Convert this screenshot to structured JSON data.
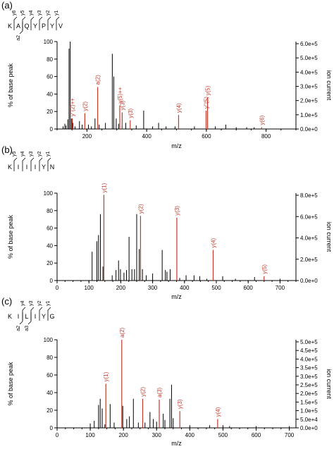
{
  "colors": {
    "black_peak": "#000000",
    "red_peak": "#c0392b",
    "axis": "#000000"
  },
  "chart_data": [
    {
      "type": "bar",
      "panel_label": "(a)",
      "sequence": [
        "K",
        "A",
        "Q",
        "Y",
        "P",
        "Y",
        "V"
      ],
      "y_fragments": [
        "y6",
        "y5",
        "y4",
        "y3",
        "y2",
        "y1"
      ],
      "a_fragments": [
        "a2"
      ],
      "xlabel": "m/z",
      "ylabel": "% of base peak",
      "y2label": "ion current",
      "xlim": [
        100,
        900
      ],
      "xticks": [
        200,
        400,
        600,
        800
      ],
      "ylim": [
        0,
        100
      ],
      "yticks": [
        0,
        20,
        40,
        60,
        80,
        100
      ],
      "y2ticks": [
        "0.0e+0",
        "1.0e+5",
        "2.0e+5",
        "3.0e+5",
        "4.0e+5",
        "5.0e+5",
        "6.0e+5"
      ],
      "black_peaks": [
        [
          120,
          3
        ],
        [
          126,
          6
        ],
        [
          130,
          4
        ],
        [
          136,
          11
        ],
        [
          140,
          92
        ],
        [
          144,
          100
        ],
        [
          148,
          12
        ],
        [
          153,
          7
        ],
        [
          160,
          3
        ],
        [
          175,
          9
        ],
        [
          184,
          5
        ],
        [
          205,
          5
        ],
        [
          215,
          3
        ],
        [
          227,
          12
        ],
        [
          241,
          5
        ],
        [
          262,
          7
        ],
        [
          285,
          86
        ],
        [
          290,
          60
        ],
        [
          298,
          12
        ],
        [
          306,
          6
        ],
        [
          318,
          4
        ],
        [
          330,
          7
        ],
        [
          365,
          4
        ],
        [
          390,
          21
        ],
        [
          420,
          3
        ],
        [
          440,
          7
        ],
        [
          465,
          3
        ],
        [
          495,
          3
        ],
        [
          560,
          3
        ],
        [
          630,
          3
        ],
        [
          665,
          5
        ],
        [
          700,
          2
        ],
        [
          735,
          2
        ],
        [
          760,
          2
        ]
      ],
      "labeled_peaks": [
        {
          "x": 151,
          "y": 12,
          "label": "y''(2)++"
        },
        {
          "x": 193,
          "y": 18,
          "label": "y(2)"
        },
        {
          "x": 236,
          "y": 48,
          "label": "a(2)"
        },
        {
          "x": 310,
          "y": 27,
          "label": "y(5)++"
        },
        {
          "x": 318,
          "y": 19,
          "label": "y(3)"
        },
        {
          "x": 345,
          "y": 10,
          "label": "y(3)"
        },
        {
          "x": 507,
          "y": 16,
          "label": "y(4)"
        },
        {
          "x": 599,
          "y": 21,
          "label": "y''(5)"
        },
        {
          "x": 604,
          "y": 36,
          "label": "y(5)"
        },
        {
          "x": 785,
          "y": 2,
          "label": "y(6)"
        }
      ]
    },
    {
      "type": "bar",
      "panel_label": "(b)",
      "sequence": [
        "K",
        "I",
        "I",
        "I",
        "Y",
        "N"
      ],
      "y_fragments": [
        "y5",
        "y4",
        "y3",
        "y2",
        "y1"
      ],
      "a_fragments": [],
      "xlabel": "m/z",
      "ylabel": "% of base peak",
      "y2label": "ion current",
      "xlim": [
        0,
        750
      ],
      "xticks": [
        0,
        100,
        200,
        300,
        400,
        500,
        600,
        700
      ],
      "ylim": [
        0,
        100
      ],
      "yticks": [
        0,
        20,
        40,
        60,
        80,
        100
      ],
      "y2ticks": [
        "0.0e+0",
        "2.0e+5",
        "4.0e+5",
        "6.0e+5",
        "8.0e+5"
      ],
      "black_peaks": [
        [
          110,
          33
        ],
        [
          125,
          45
        ],
        [
          130,
          52
        ],
        [
          136,
          76
        ],
        [
          144,
          16
        ],
        [
          173,
          6
        ],
        [
          185,
          12
        ],
        [
          193,
          23
        ],
        [
          199,
          13
        ],
        [
          210,
          9
        ],
        [
          218,
          12
        ],
        [
          226,
          50
        ],
        [
          235,
          13
        ],
        [
          243,
          13
        ],
        [
          250,
          76
        ],
        [
          258,
          36
        ],
        [
          268,
          13
        ],
        [
          280,
          6
        ],
        [
          300,
          8
        ],
        [
          330,
          35
        ],
        [
          340,
          12
        ],
        [
          345,
          10
        ],
        [
          355,
          13
        ],
        [
          385,
          3
        ],
        [
          405,
          6
        ],
        [
          430,
          6
        ],
        [
          448,
          5
        ],
        [
          470,
          2
        ],
        [
          520,
          5
        ],
        [
          560,
          2
        ],
        [
          620,
          4
        ],
        [
          700,
          2
        ]
      ],
      "labeled_peaks": [
        {
          "x": 147,
          "y": 98,
          "label": "y(1)"
        },
        {
          "x": 262,
          "y": 74,
          "label": "y(2)"
        },
        {
          "x": 376,
          "y": 72,
          "label": "y(3)"
        },
        {
          "x": 490,
          "y": 35,
          "label": "y(4)"
        },
        {
          "x": 650,
          "y": 5,
          "label": "y(5)"
        }
      ]
    },
    {
      "type": "bar",
      "panel_label": "(c)",
      "sequence": [
        "K",
        "I",
        "L",
        "I",
        "Y",
        "G"
      ],
      "y_fragments": [
        "y4",
        "y3",
        "y2",
        "y1"
      ],
      "a_fragments": [
        "a2",
        "a3"
      ],
      "xlabel": "m/z",
      "ylabel": "% of base peak",
      "y2label": "ion current",
      "xlim": [
        0,
        720
      ],
      "xticks": [
        0,
        100,
        200,
        300,
        400,
        500,
        600,
        700
      ],
      "ylim": [
        0,
        100
      ],
      "yticks": [
        0,
        20,
        40,
        60,
        80,
        100
      ],
      "y2ticks": [
        "0.0e+0",
        "5.0e+4",
        "1.0e+5",
        "1.5e+5",
        "2.0e+5",
        "2.5e+5",
        "3.0e+5",
        "3.5e+5",
        "4.0e+5",
        "4.5e+5",
        "5.0e+5"
      ],
      "black_peaks": [
        [
          100,
          5
        ],
        [
          112,
          8
        ],
        [
          125,
          26
        ],
        [
          130,
          33
        ],
        [
          136,
          22
        ],
        [
          144,
          4
        ],
        [
          160,
          27
        ],
        [
          172,
          6
        ],
        [
          198,
          25
        ],
        [
          210,
          10
        ],
        [
          218,
          13
        ],
        [
          230,
          33
        ],
        [
          245,
          6
        ],
        [
          265,
          6
        ],
        [
          280,
          18
        ],
        [
          290,
          10
        ],
        [
          300,
          7
        ],
        [
          320,
          16
        ],
        [
          325,
          9
        ],
        [
          340,
          33
        ],
        [
          345,
          49
        ],
        [
          350,
          11
        ],
        [
          400,
          3
        ],
        [
          460,
          3
        ],
        [
          500,
          3
        ],
        [
          520,
          2
        ],
        [
          600,
          2
        ],
        [
          700,
          2
        ]
      ],
      "labeled_peaks": [
        {
          "x": 147,
          "y": 50,
          "label": "y(1)"
        },
        {
          "x": 195,
          "y": 100,
          "label": "a(2)"
        },
        {
          "x": 258,
          "y": 33,
          "label": "y(2)"
        },
        {
          "x": 308,
          "y": 32,
          "label": "a(3)"
        },
        {
          "x": 370,
          "y": 19,
          "label": "y(3)"
        },
        {
          "x": 484,
          "y": 10,
          "label": "y(4)"
        }
      ]
    }
  ]
}
